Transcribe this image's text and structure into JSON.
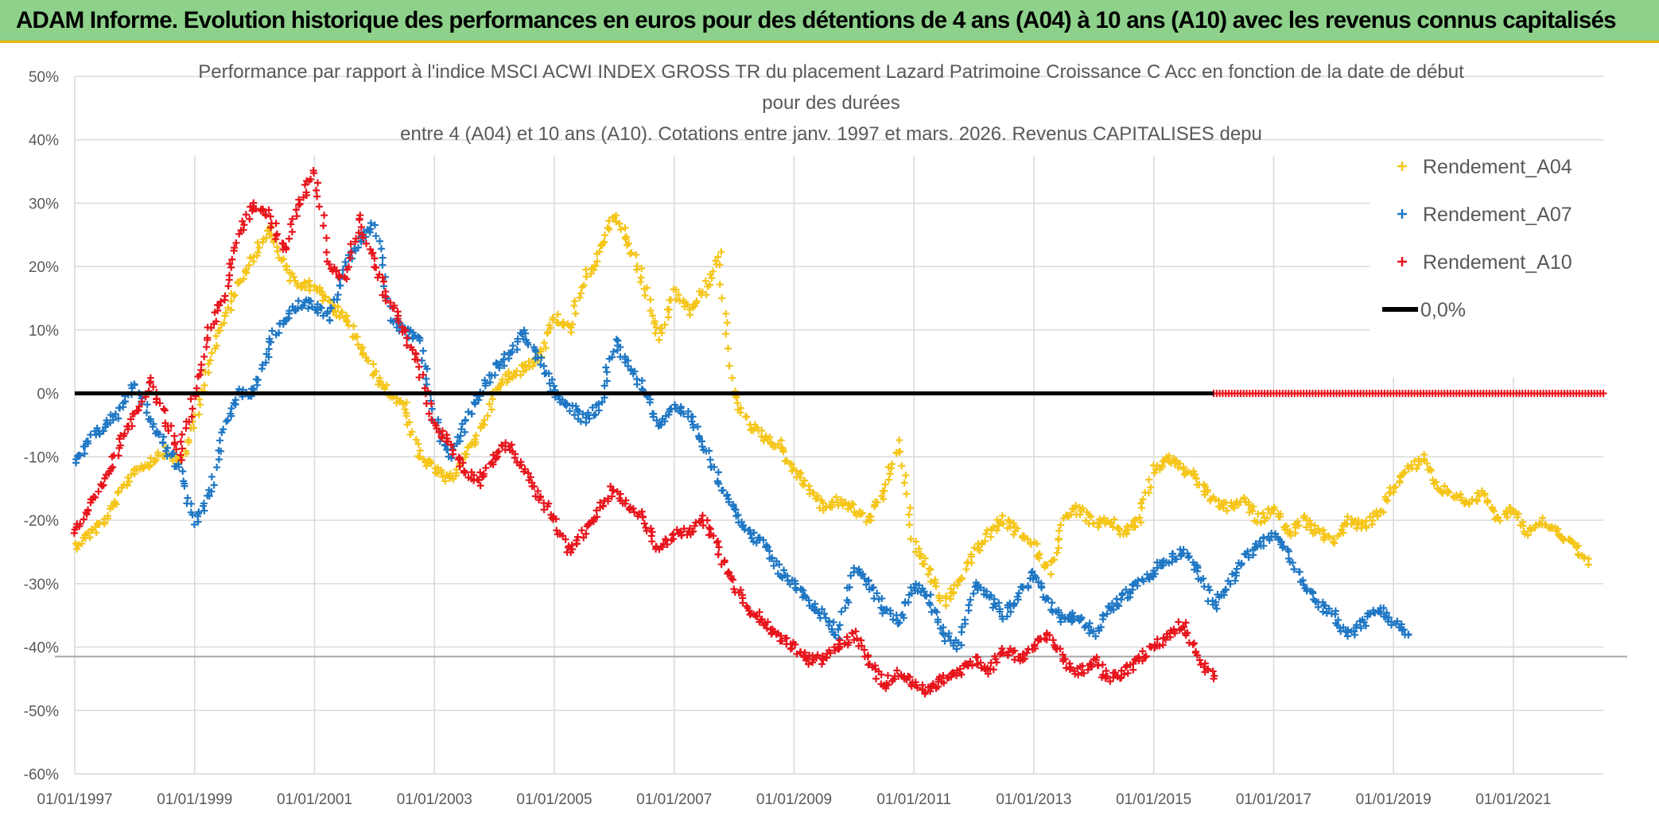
{
  "header": {
    "title": "ADAM Informe. Evolution historique des performances en euros pour des détentions de 4 ans (A04) à 10 ans (A10) avec les revenus connus capitalisés"
  },
  "colors": {
    "header_bg": "#8dd18b",
    "header_border": "#e8b500",
    "A04": "#f5c518",
    "A07": "#1f77c4",
    "A10": "#e8141c",
    "zero_line": "#000000",
    "grid": "#d9d9d9"
  },
  "chart_data": {
    "type": "scatter",
    "title_lines": [
      "Performance par rapport à l'indice MSCI ACWI INDEX GROSS TR  du placement Lazard Patrimoine Croissance C Acc en fonction de la date de début",
      "pour des durées",
      "entre 4 (A04) et 10 ans (A10). Cotations entre janv. 1997 et mars. 2026. Revenus CAPITALISES depu"
    ],
    "xlabel": "",
    "ylabel": "",
    "x_range_years": [
      1997.0,
      2022.5
    ],
    "x_ticks": [
      {
        "label": "01/01/1997",
        "year": 1997
      },
      {
        "label": "01/01/1999",
        "year": 1999
      },
      {
        "label": "01/01/2001",
        "year": 2001
      },
      {
        "label": "01/01/2003",
        "year": 2003
      },
      {
        "label": "01/01/2005",
        "year": 2005
      },
      {
        "label": "01/01/2007",
        "year": 2007
      },
      {
        "label": "01/01/2009",
        "year": 2009
      },
      {
        "label": "01/01/2011",
        "year": 2011
      },
      {
        "label": "01/01/2013",
        "year": 2013
      },
      {
        "label": "01/01/2015",
        "year": 2015
      },
      {
        "label": "01/01/2017",
        "year": 2017
      },
      {
        "label": "01/01/2019",
        "year": 2019
      },
      {
        "label": "01/01/2021",
        "year": 2021
      }
    ],
    "vertical_grid_years": [
      1999,
      2001,
      2003,
      2005,
      2007,
      2009,
      2011,
      2013,
      2015,
      2017,
      2019,
      2021
    ],
    "ylim": [
      -60,
      50
    ],
    "y_ticks": [
      {
        "label": "50%",
        "value": 50
      },
      {
        "label": "40%",
        "value": 40
      },
      {
        "label": "30%",
        "value": 30
      },
      {
        "label": "20%",
        "value": 20
      },
      {
        "label": "10%",
        "value": 10
      },
      {
        "label": "0%",
        "value": 0
      },
      {
        "label": "-10%",
        "value": -10
      },
      {
        "label": "-20%",
        "value": -20
      },
      {
        "label": "-30%",
        "value": -30
      },
      {
        "label": "-40%",
        "value": -40
      },
      {
        "label": "-50%",
        "value": -50
      },
      {
        "label": "-60%",
        "value": -60
      }
    ],
    "legend": [
      {
        "key": "A04",
        "label": "Rendement_A04",
        "marker": "+"
      },
      {
        "key": "A07",
        "label": "Rendement_A07",
        "marker": "+"
      },
      {
        "key": "A10",
        "label": "Rendement_A10",
        "marker": "+"
      },
      {
        "key": "zero",
        "label": "0,0%",
        "marker": "line"
      }
    ],
    "zero_line": {
      "label": "0,0%",
      "value": 0,
      "x_range": [
        1997.0,
        2022.5
      ]
    },
    "series": [
      {
        "name": "Rendement_A04",
        "key": "A04",
        "x": [
          1997.0,
          1997.25,
          1997.5,
          1997.75,
          1998.0,
          1998.25,
          1998.5,
          1998.75,
          1999.0,
          1999.25,
          1999.5,
          1999.75,
          2000.0,
          2000.25,
          2000.5,
          2000.75,
          2001.0,
          2001.25,
          2001.5,
          2001.75,
          2002.0,
          2002.25,
          2002.5,
          2002.75,
          2003.0,
          2003.25,
          2003.5,
          2003.75,
          2004.0,
          2004.25,
          2004.5,
          2004.75,
          2005.0,
          2005.25,
          2005.5,
          2005.75,
          2006.0,
          2006.25,
          2006.5,
          2006.75,
          2007.0,
          2007.25,
          2007.5,
          2007.75,
          2008.0,
          2008.25,
          2008.5,
          2008.75,
          2009.0,
          2009.25,
          2009.5,
          2009.75,
          2010.0,
          2010.25,
          2010.5,
          2010.75,
          2011.0,
          2011.25,
          2011.5,
          2011.75,
          2012.0,
          2012.25,
          2012.5,
          2012.75,
          2013.0,
          2013.25,
          2013.5,
          2013.75,
          2014.0,
          2014.25,
          2014.5,
          2014.75,
          2015.0,
          2015.25,
          2015.5,
          2015.75,
          2016.0,
          2016.25,
          2016.5,
          2016.75,
          2017.0,
          2017.25,
          2017.5,
          2017.75,
          2018.0,
          2018.25,
          2018.5,
          2018.75,
          2019.0,
          2019.25,
          2019.5,
          2019.75,
          2020.0,
          2020.25,
          2020.5,
          2020.75,
          2021.0,
          2021.25,
          2021.5,
          2021.75,
          2022.0,
          2022.25
        ],
        "values": [
          -24,
          -22,
          -20,
          -16,
          -12,
          -11,
          -9,
          -11,
          -5,
          5,
          12,
          18,
          22,
          26,
          20,
          17,
          17,
          14,
          12,
          8,
          3,
          0,
          -2,
          -10,
          -12,
          -14,
          -10,
          -6,
          0,
          3,
          4,
          6,
          12,
          10,
          18,
          22,
          28,
          24,
          17,
          8,
          16,
          13,
          16,
          22,
          0,
          -5,
          -7,
          -8,
          -12,
          -15,
          -18,
          -17,
          -18,
          -20,
          -15,
          -8,
          -24,
          -28,
          -33,
          -30,
          -25,
          -22,
          -20,
          -22,
          -24,
          -28,
          -20,
          -18,
          -21,
          -20,
          -22,
          -20,
          -12,
          -10,
          -12,
          -14,
          -17,
          -18,
          -17,
          -20,
          -18,
          -22,
          -20,
          -22,
          -23,
          -20,
          -21,
          -19,
          -15,
          -12,
          -10,
          -15,
          -16,
          -17,
          -16,
          -20,
          -18,
          -22,
          -20,
          -22,
          -24,
          -27
        ]
      },
      {
        "name": "Rendement_A07",
        "key": "A07",
        "x": [
          1997.0,
          1997.25,
          1997.5,
          1997.75,
          1998.0,
          1998.25,
          1998.5,
          1998.75,
          1999.0,
          1999.25,
          1999.5,
          1999.75,
          2000.0,
          2000.25,
          2000.5,
          2000.75,
          2001.0,
          2001.25,
          2001.5,
          2001.75,
          2002.0,
          2002.25,
          2002.5,
          2002.75,
          2003.0,
          2003.25,
          2003.5,
          2003.75,
          2004.0,
          2004.25,
          2004.5,
          2004.75,
          2005.0,
          2005.25,
          2005.5,
          2005.75,
          2006.0,
          2006.25,
          2006.5,
          2006.75,
          2007.0,
          2007.25,
          2007.5,
          2007.75,
          2008.0,
          2008.25,
          2008.5,
          2008.75,
          2009.0,
          2009.25,
          2009.5,
          2009.75,
          2010.0,
          2010.25,
          2010.5,
          2010.75,
          2011.0,
          2011.25,
          2011.5,
          2011.75,
          2012.0,
          2012.25,
          2012.5,
          2012.75,
          2013.0,
          2013.25,
          2013.5,
          2013.75,
          2014.0,
          2014.25,
          2014.5,
          2014.75,
          2015.0,
          2015.25,
          2015.5,
          2015.75,
          2016.0,
          2016.25,
          2016.5,
          2016.75,
          2017.0,
          2017.25,
          2017.5,
          2017.75,
          2018.0,
          2018.25,
          2018.5,
          2018.75,
          2019.0,
          2019.25
        ],
        "values": [
          -11,
          -7,
          -5,
          -3,
          2,
          -4,
          -8,
          -12,
          -20,
          -16,
          -5,
          0,
          0,
          8,
          12,
          14,
          14,
          12,
          20,
          24,
          27,
          12,
          10,
          8,
          -4,
          -10,
          -5,
          0,
          4,
          6,
          10,
          5,
          0,
          -2,
          -4,
          -2,
          8,
          5,
          0,
          -5,
          -2,
          -4,
          -8,
          -14,
          -18,
          -22,
          -24,
          -28,
          -30,
          -33,
          -35,
          -38,
          -28,
          -30,
          -34,
          -36,
          -30,
          -32,
          -38,
          -40,
          -30,
          -32,
          -35,
          -32,
          -28,
          -33,
          -36,
          -35,
          -38,
          -34,
          -32,
          -30,
          -28,
          -26,
          -25,
          -28,
          -34,
          -30,
          -26,
          -24,
          -22,
          -25,
          -30,
          -33,
          -35,
          -38,
          -36,
          -34,
          -36,
          -38
        ]
      },
      {
        "name": "Rendement_A10",
        "key": "A10",
        "x": [
          1997.0,
          1997.25,
          1997.5,
          1997.75,
          1998.0,
          1998.25,
          1998.5,
          1998.75,
          1999.0,
          1999.25,
          1999.5,
          1999.75,
          2000.0,
          2000.25,
          2000.5,
          2000.75,
          2001.0,
          2001.25,
          2001.5,
          2001.75,
          2002.0,
          2002.25,
          2002.5,
          2002.75,
          2003.0,
          2003.25,
          2003.5,
          2003.75,
          2004.0,
          2004.25,
          2004.5,
          2004.75,
          2005.0,
          2005.25,
          2005.5,
          2005.75,
          2006.0,
          2006.25,
          2006.5,
          2006.75,
          2007.0,
          2007.25,
          2007.5,
          2007.75,
          2008.0,
          2008.25,
          2008.5,
          2008.75,
          2009.0,
          2009.25,
          2009.5,
          2009.75,
          2010.0,
          2010.25,
          2010.5,
          2010.75,
          2011.0,
          2011.25,
          2011.5,
          2011.75,
          2012.0,
          2012.25,
          2012.5,
          2012.75,
          2013.0,
          2013.25,
          2013.5,
          2013.75,
          2014.0,
          2014.25,
          2014.5,
          2014.75,
          2015.0,
          2015.25,
          2015.5,
          2015.75,
          2016.0
        ],
        "values": [
          -22,
          -18,
          -14,
          -8,
          -4,
          2,
          -4,
          -10,
          0,
          10,
          16,
          25,
          30,
          28,
          22,
          30,
          35,
          20,
          18,
          28,
          20,
          14,
          10,
          4,
          -5,
          -8,
          -12,
          -14,
          -10,
          -8,
          -12,
          -16,
          -20,
          -25,
          -22,
          -18,
          -15,
          -18,
          -20,
          -25,
          -22,
          -22,
          -20,
          -25,
          -30,
          -34,
          -36,
          -38,
          -40,
          -42,
          -42,
          -40,
          -38,
          -42,
          -46,
          -44,
          -46,
          -47,
          -45,
          -44,
          -42,
          -44,
          -40,
          -42,
          -40,
          -38,
          -42,
          -44,
          -42,
          -45,
          -44,
          -42,
          -40,
          -38,
          -36,
          -42,
          -45
        ]
      },
      {
        "name": "Rendement_A10_flat",
        "key": "A10",
        "x": [
          2016.0,
          2016.5,
          2017.0,
          2017.5,
          2018.0,
          2018.5,
          2019.0,
          2019.5,
          2020.0,
          2020.5,
          2021.0,
          2021.5,
          2022.0,
          2022.5
        ],
        "values": [
          0,
          0,
          0,
          0,
          0,
          0,
          0,
          0,
          0,
          0,
          0,
          0,
          0,
          0
        ]
      }
    ]
  }
}
